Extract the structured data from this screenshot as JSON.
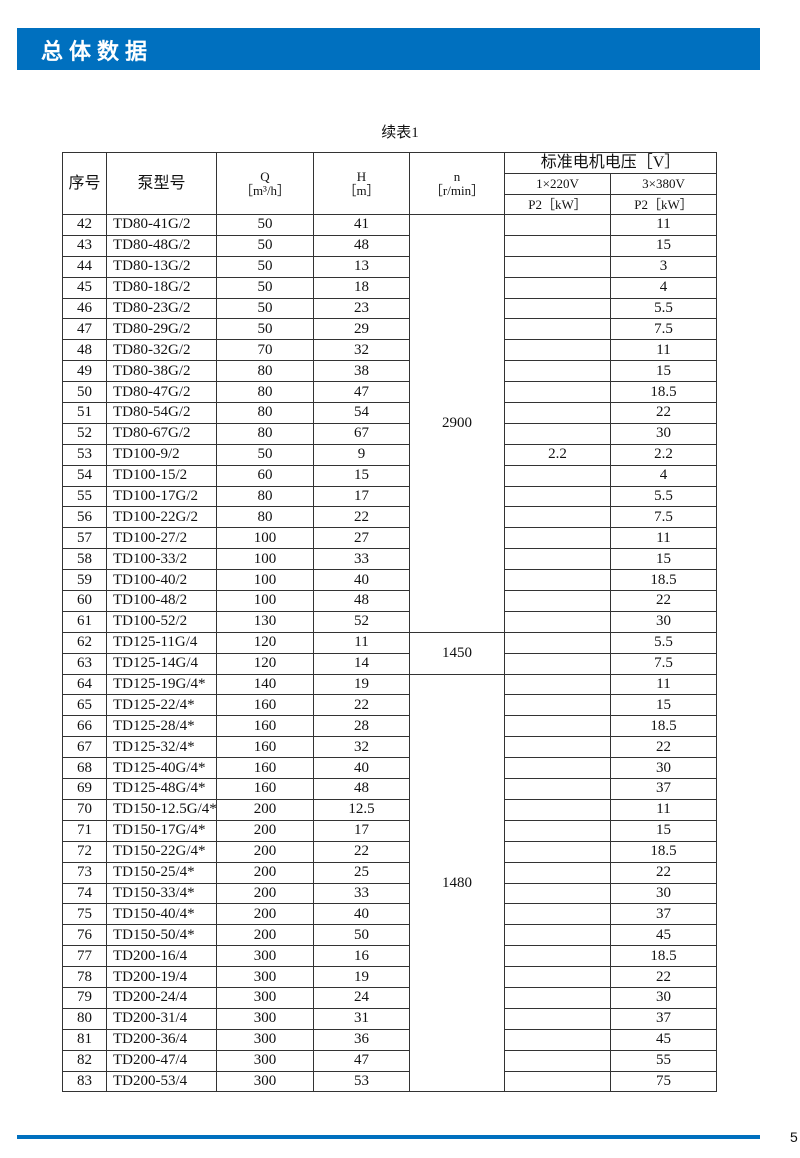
{
  "header": {
    "title": "总体数据"
  },
  "caption": "续表1",
  "columns": {
    "no": "序号",
    "model": "泵型号",
    "q": "Q",
    "q_unit": "［m³/h］",
    "h": "H",
    "h_unit": "［m］",
    "n": "n",
    "n_unit": "［r/min］",
    "voltage": "标准电机电压［V］",
    "v1": "1×220V",
    "v3": "3×380V",
    "p2_1": "P2［kW］",
    "p2_3": "P2［kW］"
  },
  "speed_groups": [
    {
      "value": "2900",
      "rows": 20
    },
    {
      "value": "1450",
      "rows": 2
    },
    {
      "value": "1480",
      "rows": 20
    }
  ],
  "rows": [
    [
      "42",
      "TD80-41G/2",
      "50",
      "41",
      "",
      "11"
    ],
    [
      "43",
      "TD80-48G/2",
      "50",
      "48",
      "",
      "15"
    ],
    [
      "44",
      "TD80-13G/2",
      "50",
      "13",
      "",
      "3"
    ],
    [
      "45",
      "TD80-18G/2",
      "50",
      "18",
      "",
      "4"
    ],
    [
      "46",
      "TD80-23G/2",
      "50",
      "23",
      "",
      "5.5"
    ],
    [
      "47",
      "TD80-29G/2",
      "50",
      "29",
      "",
      "7.5"
    ],
    [
      "48",
      "TD80-32G/2",
      "70",
      "32",
      "",
      "11"
    ],
    [
      "49",
      "TD80-38G/2",
      "80",
      "38",
      "",
      "15"
    ],
    [
      "50",
      "TD80-47G/2",
      "80",
      "47",
      "",
      "18.5"
    ],
    [
      "51",
      "TD80-54G/2",
      "80",
      "54",
      "",
      "22"
    ],
    [
      "52",
      "TD80-67G/2",
      "80",
      "67",
      "",
      "30"
    ],
    [
      "53",
      "TD100-9/2",
      "50",
      "9",
      "2.2",
      "2.2"
    ],
    [
      "54",
      "TD100-15/2",
      "60",
      "15",
      "",
      "4"
    ],
    [
      "55",
      "TD100-17G/2",
      "80",
      "17",
      "",
      "5.5"
    ],
    [
      "56",
      "TD100-22G/2",
      "80",
      "22",
      "",
      "7.5"
    ],
    [
      "57",
      "TD100-27/2",
      "100",
      "27",
      "",
      "11"
    ],
    [
      "58",
      "TD100-33/2",
      "100",
      "33",
      "",
      "15"
    ],
    [
      "59",
      "TD100-40/2",
      "100",
      "40",
      "",
      "18.5"
    ],
    [
      "60",
      "TD100-48/2",
      "100",
      "48",
      "",
      "22"
    ],
    [
      "61",
      "TD100-52/2",
      "130",
      "52",
      "",
      "30"
    ],
    [
      "62",
      "TD125-11G/4",
      "120",
      "11",
      "",
      "5.5"
    ],
    [
      "63",
      "TD125-14G/4",
      "120",
      "14",
      "",
      "7.5"
    ],
    [
      "64",
      "TD125-19G/4*",
      "140",
      "19",
      "",
      "11"
    ],
    [
      "65",
      "TD125-22/4*",
      "160",
      "22",
      "",
      "15"
    ],
    [
      "66",
      "TD125-28/4*",
      "160",
      "28",
      "",
      "18.5"
    ],
    [
      "67",
      "TD125-32/4*",
      "160",
      "32",
      "",
      "22"
    ],
    [
      "68",
      "TD125-40G/4*",
      "160",
      "40",
      "",
      "30"
    ],
    [
      "69",
      "TD125-48G/4*",
      "160",
      "48",
      "",
      "37"
    ],
    [
      "70",
      "TD150-12.5G/4*",
      "200",
      "12.5",
      "",
      "11"
    ],
    [
      "71",
      "TD150-17G/4*",
      "200",
      "17",
      "",
      "15"
    ],
    [
      "72",
      "TD150-22G/4*",
      "200",
      "22",
      "",
      "18.5"
    ],
    [
      "73",
      "TD150-25/4*",
      "200",
      "25",
      "",
      "22"
    ],
    [
      "74",
      "TD150-33/4*",
      "200",
      "33",
      "",
      "30"
    ],
    [
      "75",
      "TD150-40/4*",
      "200",
      "40",
      "",
      "37"
    ],
    [
      "76",
      "TD150-50/4*",
      "200",
      "50",
      "",
      "45"
    ],
    [
      "77",
      "TD200-16/4",
      "300",
      "16",
      "",
      "18.5"
    ],
    [
      "78",
      "TD200-19/4",
      "300",
      "19",
      "",
      "22"
    ],
    [
      "79",
      "TD200-24/4",
      "300",
      "24",
      "",
      "30"
    ],
    [
      "80",
      "TD200-31/4",
      "300",
      "31",
      "",
      "37"
    ],
    [
      "81",
      "TD200-36/4",
      "300",
      "36",
      "",
      "45"
    ],
    [
      "82",
      "TD200-47/4",
      "300",
      "47",
      "",
      "55"
    ],
    [
      "83",
      "TD200-53/4",
      "300",
      "53",
      "",
      "75"
    ]
  ],
  "page_number": "5",
  "colors": {
    "brand": "#0070bf"
  }
}
